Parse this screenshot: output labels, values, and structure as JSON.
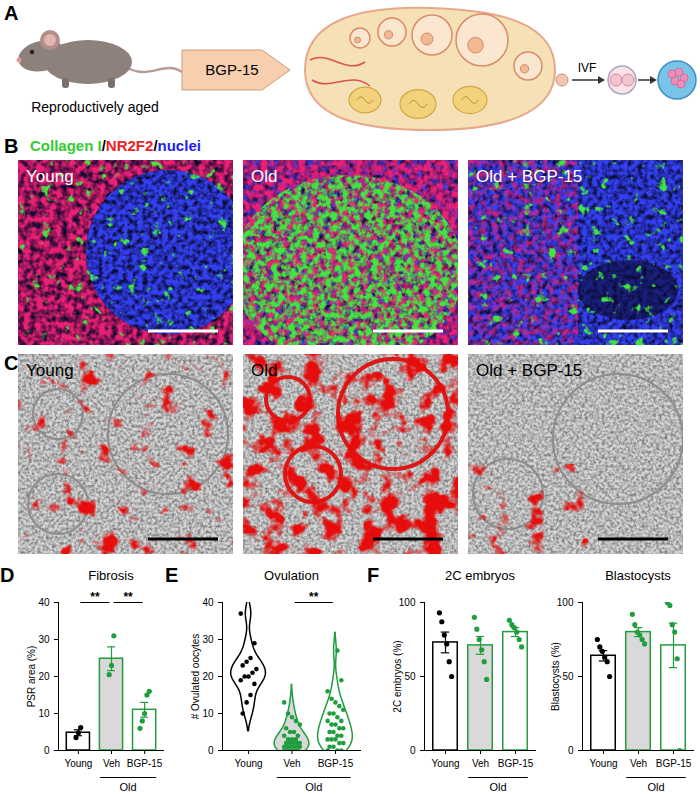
{
  "figure": {
    "A": {
      "panel": "A",
      "subject": "Reproductively aged",
      "treatment": "BGP-15",
      "procedure": "IVF"
    },
    "B": {
      "panel": "B",
      "stain": [
        {
          "text": "Collagen I",
          "color": "#33cc33"
        },
        {
          "text": "/",
          "color": "#000000"
        },
        {
          "text": "NR2F2",
          "color": "#ee2222"
        },
        {
          "text": "/",
          "color": "#000000"
        },
        {
          "text": "nuclei",
          "color": "#2222ee"
        }
      ],
      "images": [
        "Young",
        "Old",
        "Old + BGP-15"
      ]
    },
    "C": {
      "panel": "C",
      "images": [
        "Young",
        "Old",
        "Old + BGP-15"
      ]
    }
  },
  "chart_data": [
    {
      "panel": "D",
      "type": "bar",
      "title": "Fibrosis",
      "y_label": "PSR area (%)",
      "categories": [
        "Young",
        "Veh",
        "BGP-15"
      ],
      "values": [
        4.8,
        24.8,
        11
      ],
      "errors": [
        0.8,
        3.2,
        2
      ],
      "points": [
        [
          3.5,
          4.8,
          6.2
        ],
        [
          20.5,
          23,
          31
        ],
        [
          6,
          8,
          10,
          15,
          16
        ]
      ],
      "colors": [
        "#000000",
        "#1e9e3c",
        "#1e9e3c"
      ],
      "groups": [
        {
          "label": "Old",
          "categories": [
            "Veh",
            "BGP-15"
          ]
        }
      ],
      "significance": [
        {
          "from": "Young",
          "to": "Veh",
          "label": "**"
        },
        {
          "from": "Veh",
          "to": "BGP-15",
          "label": "**"
        }
      ],
      "ylim": [
        0,
        40
      ],
      "yticks": [
        0,
        10,
        20,
        30,
        40
      ]
    },
    {
      "panel": "E",
      "type": "violin",
      "title": "Ovulation",
      "y_label": "# Ovulated oocytes",
      "categories": [
        "Young",
        "Veh",
        "BGP-15"
      ],
      "points": [
        [
          37,
          29,
          25,
          24,
          23,
          22,
          21,
          20,
          20,
          19,
          18,
          15,
          13,
          10
        ],
        [
          0,
          0,
          0,
          0,
          0,
          1,
          1,
          1,
          1,
          1,
          2,
          2,
          2,
          2,
          2,
          3,
          3,
          3,
          4,
          4,
          5,
          5,
          6,
          7,
          8,
          9,
          10,
          13
        ],
        [
          0,
          0,
          0,
          1,
          1,
          2,
          2,
          3,
          3,
          3,
          4,
          4,
          5,
          5,
          6,
          6,
          7,
          7,
          8,
          8,
          9,
          10,
          10,
          11,
          12,
          13,
          14,
          16,
          19,
          27
        ]
      ],
      "colors": [
        "#000000",
        "#1e9e3c",
        "#1e9e3c"
      ],
      "groups": [
        {
          "label": "Old",
          "categories": [
            "Veh",
            "BGP-15"
          ]
        }
      ],
      "significance": [
        {
          "from": "Veh",
          "to": "BGP-15",
          "label": "**"
        }
      ],
      "ylim": [
        0,
        40
      ],
      "yticks": [
        0,
        10,
        20,
        30,
        40
      ]
    },
    {
      "panel": "F",
      "type": "bar",
      "title": "2C embryos",
      "y_label": "2C embryos (%)",
      "categories": [
        "Young",
        "Veh",
        "BGP-15"
      ],
      "values": [
        73,
        71,
        80
      ],
      "errors": [
        7,
        6,
        3
      ],
      "points": [
        [
          93,
          87,
          78,
          72,
          60,
          50
        ],
        [
          90,
          82,
          75,
          68,
          60,
          48
        ],
        [
          88,
          85,
          83,
          80,
          75,
          70
        ]
      ],
      "colors": [
        "#000000",
        "#1e9e3c",
        "#1e9e3c"
      ],
      "groups": [
        {
          "label": "Old",
          "categories": [
            "Veh",
            "BGP-15"
          ]
        }
      ],
      "ylim": [
        0,
        100
      ],
      "yticks": [
        0,
        50,
        100
      ]
    },
    {
      "type": "bar",
      "title": "Blastocysts",
      "y_label": "Blastocysts (%)",
      "categories": [
        "Young",
        "Veh",
        "BGP-15"
      ],
      "values": [
        64,
        80,
        71
      ],
      "errors": [
        3.5,
        3,
        15
      ],
      "points": [
        [
          75,
          70,
          67,
          63,
          60,
          50
        ],
        [
          92,
          85,
          80,
          78,
          75,
          72
        ],
        [
          100,
          98,
          85,
          80,
          62,
          0
        ]
      ],
      "colors": [
        "#000000",
        "#1e9e3c",
        "#1e9e3c"
      ],
      "groups": [
        {
          "label": "Old",
          "categories": [
            "Veh",
            "BGP-15"
          ]
        }
      ],
      "ylim": [
        0,
        100
      ],
      "yticks": [
        0,
        50,
        100
      ]
    }
  ]
}
